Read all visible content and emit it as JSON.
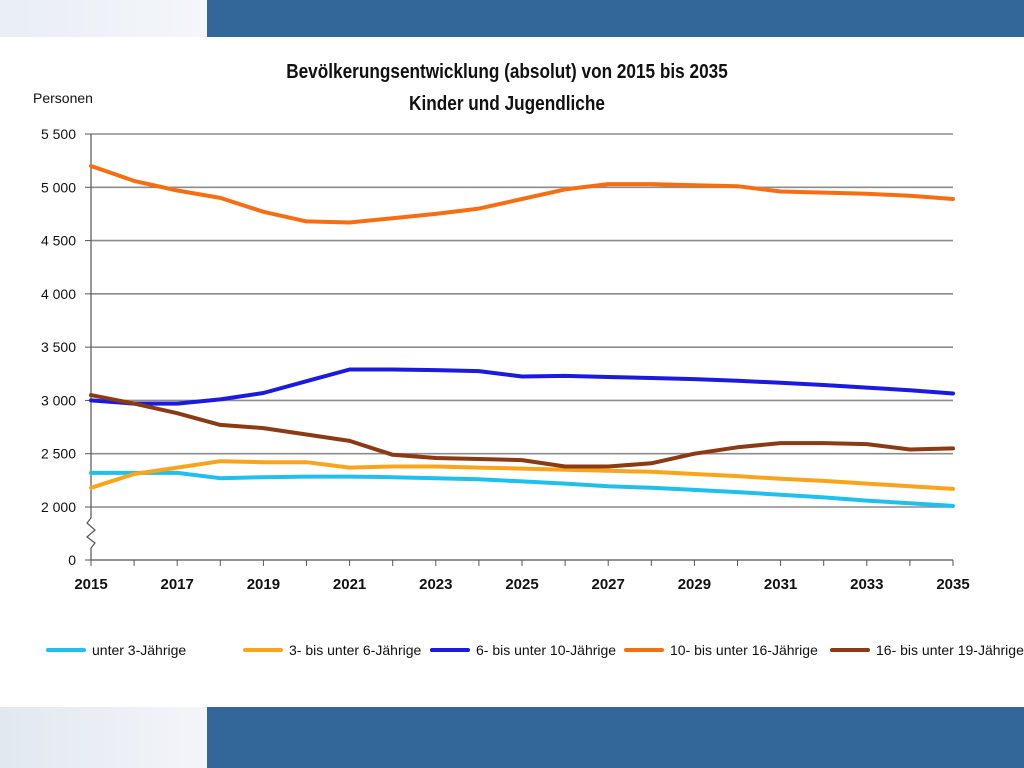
{
  "chart_data": {
    "type": "line",
    "title": "Bevölkerungsentwicklung (absolut) von 2015 bis 2035",
    "subtitle": "Kinder und Jugendliche",
    "ylabel": "Personen",
    "xlabel": "",
    "x": [
      2015,
      2016,
      2017,
      2018,
      2019,
      2020,
      2021,
      2022,
      2023,
      2024,
      2025,
      2026,
      2027,
      2028,
      2029,
      2030,
      2031,
      2032,
      2033,
      2034,
      2035
    ],
    "x_tick_labels": [
      "2015",
      "2017",
      "2019",
      "2021",
      "2023",
      "2025",
      "2027",
      "2029",
      "2031",
      "2033",
      "2035"
    ],
    "y_tick_labels": [
      "0",
      "2 000",
      "2 500",
      "3 000",
      "3 500",
      "4 000",
      "4 500",
      "5 000",
      "5 500"
    ],
    "ylim": [
      0,
      5500
    ],
    "y_axis_break": [
      0,
      2000
    ],
    "grid": "horizontal",
    "legend_position": "bottom",
    "series": [
      {
        "name": "unter 3-Jährige",
        "color": "#1ec0ee",
        "values": [
          2320,
          2320,
          2320,
          2270,
          2280,
          2285,
          2285,
          2280,
          2270,
          2260,
          2240,
          2220,
          2195,
          2180,
          2160,
          2140,
          2115,
          2090,
          2060,
          2035,
          2010
        ]
      },
      {
        "name": "3- bis unter 6-Jährige",
        "color": "#f9a41b",
        "values": [
          2180,
          2310,
          2370,
          2430,
          2420,
          2420,
          2370,
          2380,
          2380,
          2370,
          2360,
          2350,
          2340,
          2330,
          2310,
          2290,
          2265,
          2245,
          2220,
          2195,
          2170
        ]
      },
      {
        "name": "6- bis unter 10-Jährige",
        "color": "#1a1ae0",
        "values": [
          3000,
          2970,
          2970,
          3010,
          3070,
          3180,
          3290,
          3290,
          3285,
          3275,
          3225,
          3230,
          3220,
          3210,
          3200,
          3185,
          3165,
          3145,
          3120,
          3095,
          3065
        ]
      },
      {
        "name": "10- bis unter 16-Jährige",
        "color": "#f76e12",
        "values": [
          5200,
          5060,
          4970,
          4900,
          4770,
          4680,
          4670,
          4710,
          4750,
          4800,
          4890,
          4980,
          5030,
          5030,
          5020,
          5010,
          4960,
          4950,
          4940,
          4920,
          4890
        ]
      },
      {
        "name": "16- bis unter 19-Jährige",
        "color": "#8b3a14",
        "values": [
          3050,
          2970,
          2880,
          2770,
          2740,
          2680,
          2620,
          2490,
          2460,
          2450,
          2440,
          2380,
          2380,
          2410,
          2500,
          2560,
          2600,
          2600,
          2590,
          2540,
          2550
        ]
      }
    ]
  }
}
